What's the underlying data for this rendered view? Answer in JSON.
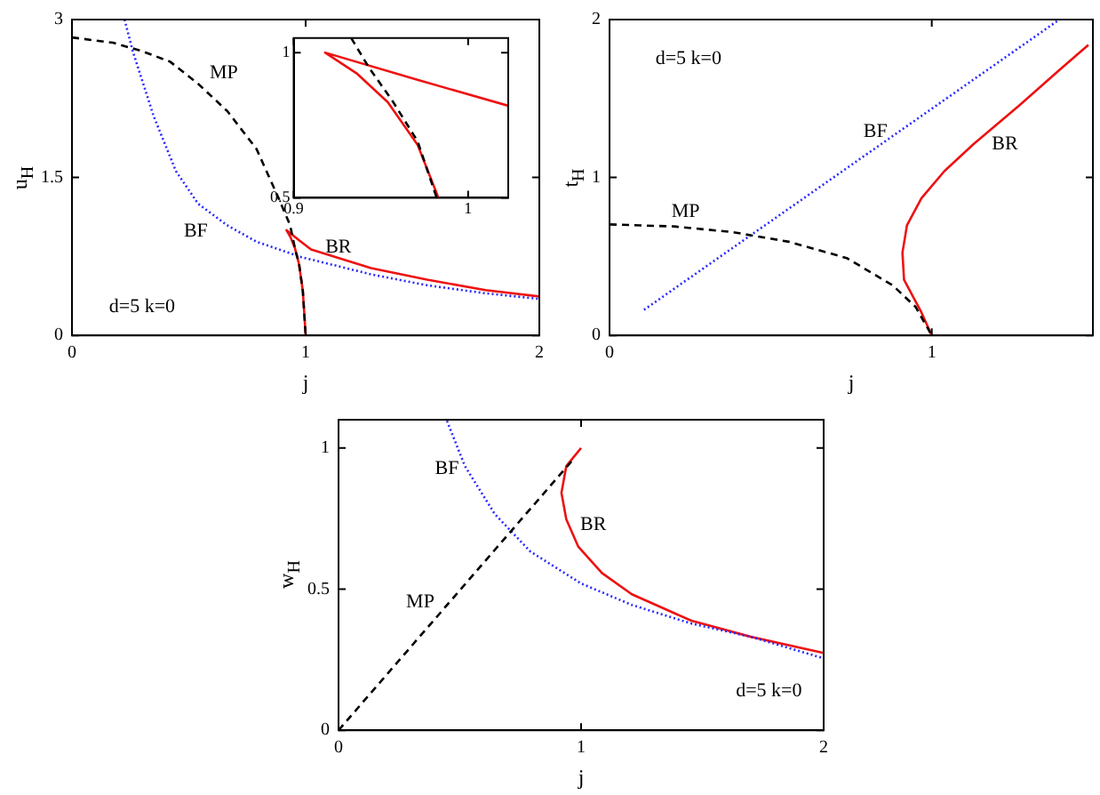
{
  "chart_data": [
    {
      "type": "line",
      "xlabel": "j",
      "ylabel": "u$_{H}$",
      "xlim": [
        0,
        2
      ],
      "ylim": [
        0,
        3
      ],
      "xticks": [
        0,
        1,
        2
      ],
      "yticks": [
        0,
        1.5,
        3
      ],
      "grid": false,
      "legend": false,
      "annotations": [
        "d=5 k=0"
      ],
      "series": [
        {
          "name": "MP",
          "color": "#000000",
          "line_style": "dashed",
          "x": [
            0,
            0.176,
            0.3,
            0.42,
            0.54,
            0.665,
            0.79,
            0.885,
            0.933,
            0.958,
            0.971,
            0.988,
            1
          ],
          "values": [
            2.83,
            2.78,
            2.7,
            2.6,
            2.39,
            2.13,
            1.77,
            1.3,
            1.05,
            0.79,
            0.695,
            0.42,
            0
          ]
        },
        {
          "name": "BF",
          "color": "#2a2aff",
          "line_style": "dotted",
          "x": [
            0.225,
            0.26,
            0.35,
            0.445,
            0.54,
            0.665,
            0.79,
            0.98,
            1.28,
            1.52,
            1.77,
            2
          ],
          "values": [
            3,
            2.7,
            2.08,
            1.56,
            1.25,
            1.045,
            0.89,
            0.745,
            0.58,
            0.476,
            0.4,
            0.347
          ]
        },
        {
          "name": "BR",
          "color": "#ee1111",
          "line_style": "solid",
          "x": [
            1,
            0.988,
            0.983,
            0.971,
            0.954,
            0.936,
            0.918,
            0.971,
            1.023,
            1.28,
            1.52,
            1.77,
            2
          ],
          "values": [
            0,
            0.42,
            0.5,
            0.683,
            0.829,
            0.929,
            1.0,
            0.906,
            0.817,
            0.64,
            0.53,
            0.43,
            0.37
          ]
        }
      ]
    },
    {
      "type": "line",
      "xlim": [
        0.9,
        1.023
      ],
      "ylim": [
        0.5,
        1.05
      ],
      "xticks": [
        0.9,
        1
      ],
      "yticks": [
        0.5,
        1
      ],
      "grid": false,
      "legend": false,
      "series": [
        {
          "color": "#000000",
          "line_style": "dashed",
          "x": [
            0.933,
            0.943,
            0.957,
            0.971,
            0.982
          ],
          "values": [
            1.05,
            0.95,
            0.83,
            0.695,
            0.5
          ]
        },
        {
          "color": "#ee1111",
          "line_style": "solid",
          "x": [
            0.983,
            0.971,
            0.954,
            0.936,
            0.918,
            0.971,
            1.023
          ],
          "values": [
            0.5,
            0.683,
            0.829,
            0.929,
            1.0,
            0.906,
            0.817
          ]
        }
      ]
    },
    {
      "type": "line",
      "xlabel": "j",
      "ylabel": "t$_{H}$",
      "xlim": [
        0,
        1.5
      ],
      "ylim": [
        0,
        2
      ],
      "xticks": [
        0,
        1
      ],
      "yticks": [
        0,
        1,
        2
      ],
      "grid": false,
      "legend": false,
      "annotations": [
        "d=5 k=0"
      ],
      "series": [
        {
          "name": "MP",
          "color": "#000000",
          "line_style": "dashed",
          "x": [
            0,
            0.2,
            0.379,
            0.557,
            0.736,
            0.879,
            0.95,
            1
          ],
          "values": [
            0.703,
            0.69,
            0.655,
            0.593,
            0.49,
            0.317,
            0.18,
            0
          ]
        },
        {
          "name": "BF",
          "color": "#2a2aff",
          "line_style": "dotted",
          "x": [
            0.107,
            1.396
          ],
          "values": [
            0.162,
            2.0
          ]
        },
        {
          "name": "BR",
          "color": "#ee1111",
          "line_style": "solid",
          "x": [
            1,
            0.968,
            0.914,
            0.909,
            0.923,
            0.968,
            1.039,
            1.129,
            1.271,
            1.396,
            1.486
          ],
          "values": [
            0,
            0.145,
            0.352,
            0.524,
            0.697,
            0.869,
            1.04,
            1.21,
            1.455,
            1.68,
            1.84
          ]
        }
      ]
    },
    {
      "type": "line",
      "xlabel": "j",
      "ylabel": "w$_{H}$",
      "xlim": [
        0,
        2
      ],
      "ylim": [
        0,
        1.1
      ],
      "xticks": [
        0,
        1,
        2
      ],
      "yticks": [
        0,
        0.5,
        1
      ],
      "grid": false,
      "legend": false,
      "annotations": [
        "d=5 k=0"
      ],
      "series": [
        {
          "name": "MP",
          "color": "#000000",
          "line_style": "dashed",
          "x": [
            0,
            0.963
          ],
          "values": [
            0,
            0.955
          ]
        },
        {
          "name": "BF",
          "color": "#2a2aff",
          "line_style": "dotted",
          "x": [
            0.447,
            0.521,
            0.644,
            0.791,
            1,
            1.209,
            1.455,
            1.7,
            2
          ],
          "values": [
            1.096,
            0.936,
            0.766,
            0.633,
            0.52,
            0.444,
            0.378,
            0.331,
            0.255
          ]
        },
        {
          "name": "BR",
          "color": "#ee1111",
          "line_style": "solid",
          "x": [
            1,
            0.939,
            0.919,
            0.939,
            0.988,
            1.086,
            1.209,
            1.455,
            1.7,
            2
          ],
          "values": [
            1,
            0.936,
            0.841,
            0.747,
            0.651,
            0.557,
            0.482,
            0.388,
            0.331,
            0.274
          ]
        }
      ]
    }
  ]
}
